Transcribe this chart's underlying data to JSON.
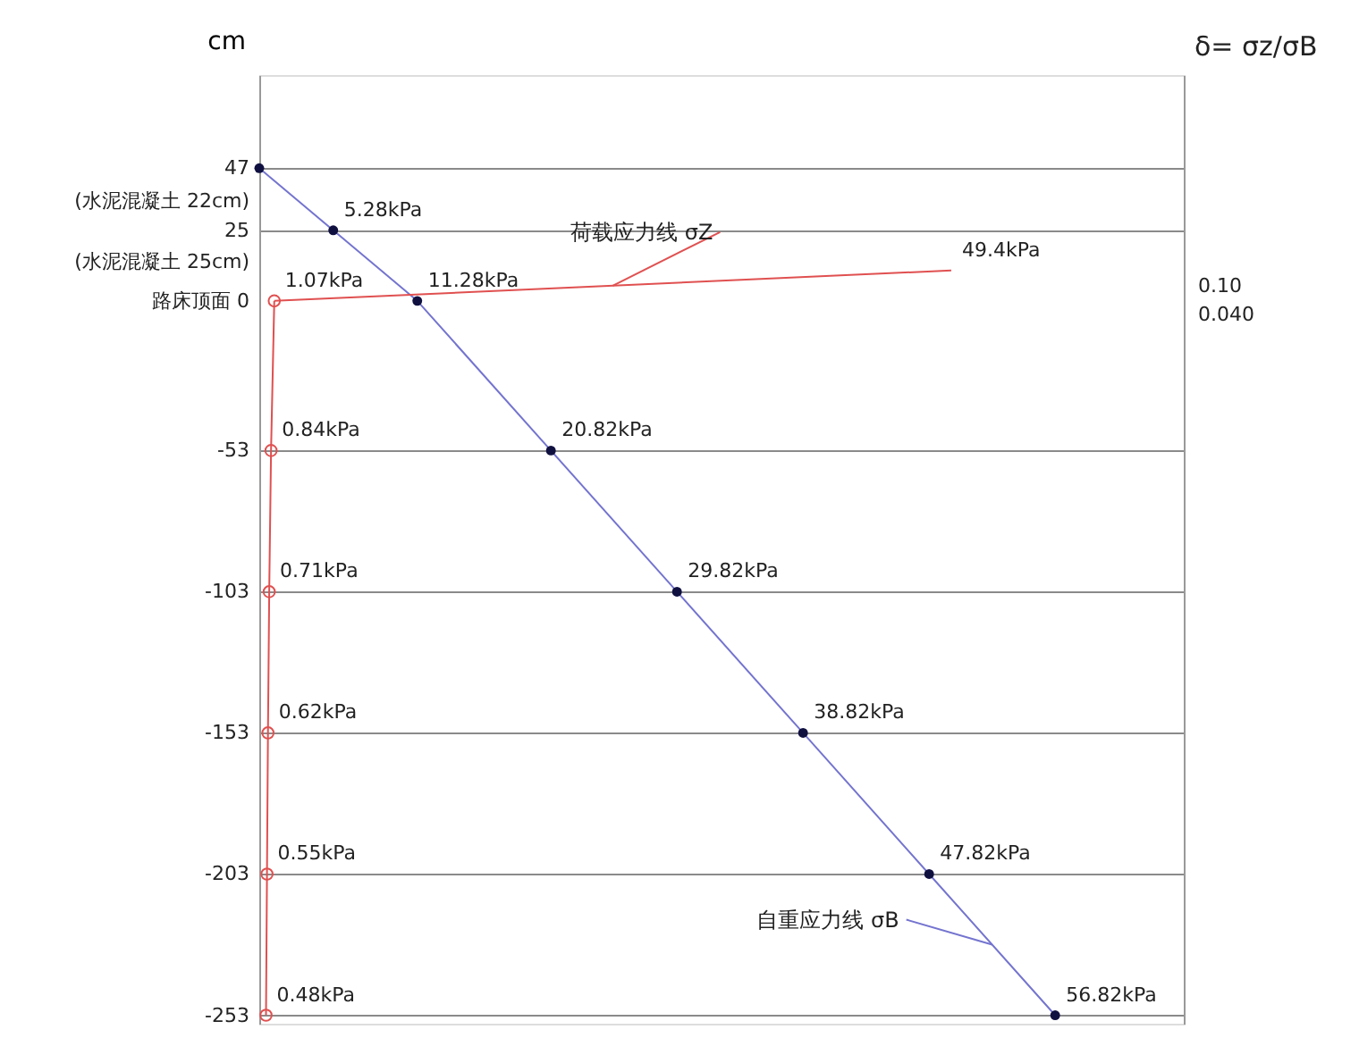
{
  "chart_data": {
    "type": "line",
    "orientation": "horizontal",
    "ylabel": "cm",
    "xlim": [
      0,
      66
    ],
    "ylim": [
      -256,
      80
    ],
    "yticks": [
      47,
      {
        "value": 35.4,
        "label": "(水泥混凝土 22cm)"
      },
      25,
      {
        "value": 13.9,
        "label": "(水泥混凝土 25cm)"
      },
      {
        "value": 0,
        "label": "路床顶面 0"
      },
      -53,
      -103,
      -153,
      -203,
      -253
    ],
    "tick_labels": "y",
    "grid": "y",
    "marker": "circle",
    "series": [
      {
        "name": "自重应力线 σB",
        "color": "#7474d0",
        "x": [
          47,
          25,
          0,
          -53,
          -103,
          -153,
          -203,
          -253
        ],
        "values": [
          0,
          5.28,
          11.28,
          20.82,
          29.82,
          38.82,
          47.82,
          56.82
        ],
        "value_labels": [
          null,
          "5.28kPa",
          "11.28kPa",
          "20.82kPa",
          "29.82kPa",
          "38.82kPa",
          "47.82kPa",
          "56.82kPa"
        ]
      },
      {
        "color": "#e05050",
        "x": [
          0,
          -53,
          -103,
          -153,
          -203,
          -253
        ],
        "values": [
          1.07,
          0.84,
          0.71,
          0.62,
          0.55,
          0.48
        ],
        "value_labels": [
          "1.07kPa",
          "0.84kPa",
          "0.71kPa",
          "0.62kPa",
          "0.55kPa",
          "0.48kPa"
        ]
      },
      {
        "name": "荷载应力线 σZ",
        "color": "#e05050",
        "marker": "none",
        "x": [
          0,
          10.8
        ],
        "values": [
          1.07,
          49.4
        ],
        "value_labels": [
          null,
          "49.4kPa"
        ]
      }
    ],
    "annotations": [
      "δ= σz/σB",
      "0.10",
      "0.040"
    ]
  }
}
